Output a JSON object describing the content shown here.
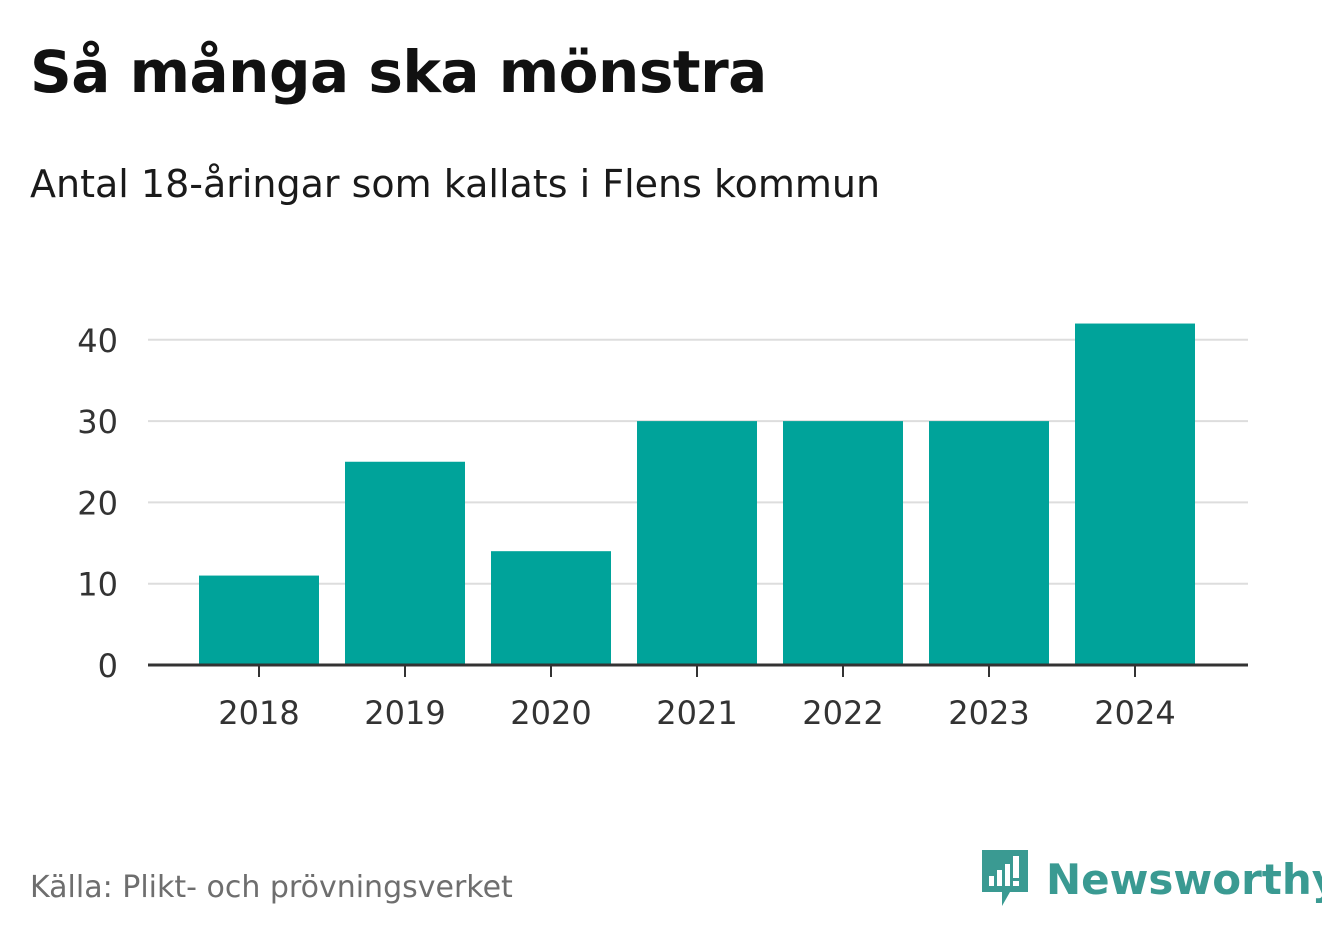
{
  "header": {
    "title": "Så många ska mönstra",
    "subtitle": "Antal 18-åringar som kallats i Flens kommun"
  },
  "footer": {
    "source": "Källa: Plikt- och prövningsverket",
    "brand": "Newsworthy",
    "brand_icon": "newsworthy-logo-icon"
  },
  "colors": {
    "bar": "#00a39a",
    "grid": "#dddddd",
    "axis": "#333333",
    "brand": "#3a9a92"
  },
  "chart_data": {
    "type": "bar",
    "title": "Så många ska mönstra",
    "subtitle": "Antal 18-åringar som kallats i Flens kommun",
    "categories": [
      "2018",
      "2019",
      "2020",
      "2021",
      "2022",
      "2023",
      "2024"
    ],
    "values": [
      11,
      25,
      14,
      30,
      30,
      30,
      42
    ],
    "xlabel": "",
    "ylabel": "",
    "ylim": [
      0,
      42
    ],
    "yticks": [
      0,
      10,
      20,
      30,
      40
    ],
    "grid": true,
    "legend": "none"
  }
}
